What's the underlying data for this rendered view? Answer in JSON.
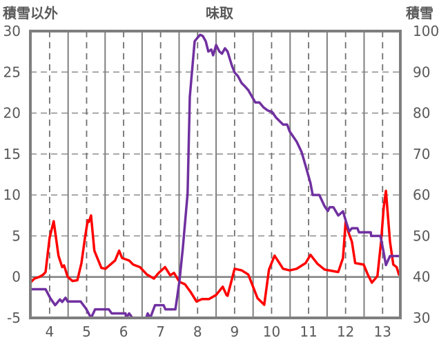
{
  "chart_data": {
    "type": "line",
    "title": "味取",
    "ylabel_left": "積雪以外",
    "ylabel_right": "積雪",
    "xlim": [
      3.48,
      13.48
    ],
    "ylim_left": [
      -5,
      30
    ],
    "ylim_right": [
      30,
      100
    ],
    "x_ticks": [
      4,
      5,
      6,
      7,
      8,
      9,
      10,
      11,
      12,
      13
    ],
    "x_tick_labels": [
      "4",
      "5",
      "6",
      "7",
      "8",
      "9",
      "10",
      "11",
      "12",
      "13"
    ],
    "y_left_ticks": [
      -5,
      0,
      5,
      10,
      15,
      20,
      25,
      30
    ],
    "y_left_tick_labels": [
      "-5",
      "0",
      "5",
      "10",
      "15",
      "20",
      "25",
      "30"
    ],
    "y_right_ticks": [
      30,
      40,
      50,
      60,
      70,
      80,
      90,
      100
    ],
    "y_right_tick_labels": [
      "30",
      "40",
      "50",
      "60",
      "70",
      "80",
      "90",
      "100"
    ],
    "grid": true,
    "series": [
      {
        "name": "積雪以外",
        "axis": "left",
        "color": "#ff0000",
        "x": [
          3.5,
          3.59,
          3.72,
          3.83,
          3.89,
          4.0,
          4.11,
          4.24,
          4.34,
          4.39,
          4.49,
          4.62,
          4.75,
          4.86,
          4.95,
          5.03,
          5.06,
          5.12,
          5.21,
          5.4,
          5.51,
          5.77,
          5.88,
          5.96,
          6.15,
          6.26,
          6.44,
          6.63,
          6.82,
          6.95,
          7.12,
          7.26,
          7.36,
          7.51,
          7.66,
          7.82,
          7.97,
          8.12,
          8.31,
          8.5,
          8.68,
          8.78,
          8.81,
          9.0,
          9.19,
          9.37,
          9.62,
          9.8,
          9.93,
          10.08,
          10.31,
          10.49,
          10.68,
          10.92,
          11.05,
          11.24,
          11.43,
          11.67,
          11.8,
          11.93,
          12.0,
          12.08,
          12.17,
          12.26,
          12.49,
          12.6,
          12.71,
          12.86,
          12.96,
          13.03,
          13.09,
          13.2,
          13.29,
          13.38,
          13.44
        ],
        "y": [
          -0.6,
          -0.2,
          0.0,
          0.3,
          0.6,
          4.8,
          6.8,
          2.6,
          1.2,
          1.4,
          0.0,
          -0.5,
          -0.4,
          1.7,
          4.6,
          6.9,
          6.7,
          7.5,
          3.2,
          1.1,
          1.0,
          2.0,
          3.2,
          2.3,
          2.0,
          1.5,
          1.2,
          0.3,
          -0.2,
          0.5,
          1.2,
          0.2,
          0.5,
          -0.6,
          -0.9,
          -1.9,
          -3.0,
          -2.7,
          -2.7,
          -2.2,
          -1.2,
          -2.2,
          -2.3,
          1.0,
          0.8,
          0.3,
          -2.6,
          -3.4,
          0.9,
          2.6,
          1.0,
          0.8,
          1.0,
          1.7,
          2.7,
          1.6,
          0.9,
          0.7,
          0.6,
          2.3,
          6.7,
          5.4,
          4.3,
          1.7,
          1.5,
          0.3,
          -0.7,
          0.1,
          4.3,
          8.5,
          10.5,
          4.3,
          1.5,
          1.2,
          0.3
        ]
      },
      {
        "name": "積雪",
        "axis": "right",
        "color": "#7030a0",
        "x": [
          3.5,
          3.89,
          4.02,
          4.15,
          4.28,
          4.34,
          4.43,
          4.49,
          4.84,
          4.99,
          5.12,
          5.23,
          5.6,
          5.68,
          6.05,
          6.07,
          6.15,
          6.24,
          6.61,
          6.65,
          6.72,
          6.85,
          7.08,
          7.13,
          7.4,
          7.51,
          7.6,
          7.73,
          7.79,
          7.92,
          7.99,
          8.07,
          8.14,
          8.22,
          8.29,
          8.37,
          8.42,
          8.5,
          8.59,
          8.66,
          8.74,
          8.81,
          8.93,
          9.0,
          9.09,
          9.19,
          9.28,
          9.37,
          9.47,
          9.56,
          9.67,
          9.78,
          9.9,
          10.01,
          10.12,
          10.31,
          10.42,
          10.49,
          10.68,
          10.81,
          10.92,
          11.05,
          11.11,
          11.29,
          11.43,
          11.52,
          11.57,
          11.67,
          11.8,
          11.93,
          12.02,
          12.1,
          12.17,
          12.32,
          12.36,
          12.68,
          12.69,
          12.94,
          13.01,
          13.09,
          13.2,
          13.44
        ],
        "y": [
          37.0,
          37.0,
          34.8,
          33.1,
          34.5,
          33.9,
          34.9,
          34.0,
          34.0,
          32.2,
          30.0,
          32.1,
          32.1,
          31.1,
          31.1,
          30.0,
          31.1,
          30.0,
          30.0,
          31.1,
          30.0,
          33.1,
          33.1,
          32.1,
          32.1,
          39.0,
          46.9,
          60.4,
          84.0,
          97.5,
          98.3,
          99.1,
          98.8,
          97.5,
          95.0,
          95.5,
          94.1,
          96.6,
          95.0,
          94.5,
          95.8,
          95.0,
          91.5,
          89.9,
          89.0,
          87.3,
          86.5,
          85.6,
          84.0,
          82.6,
          82.6,
          81.4,
          80.6,
          80.3,
          78.9,
          77.2,
          77.2,
          75.5,
          73.0,
          70.5,
          67.1,
          62.9,
          60.0,
          60.0,
          57.3,
          56.1,
          57.0,
          57.0,
          55.0,
          56.0,
          53.3,
          51.1,
          51.9,
          51.9,
          50.9,
          50.9,
          50.0,
          50.0,
          46.9,
          42.9,
          45.1,
          45.1
        ]
      }
    ]
  }
}
